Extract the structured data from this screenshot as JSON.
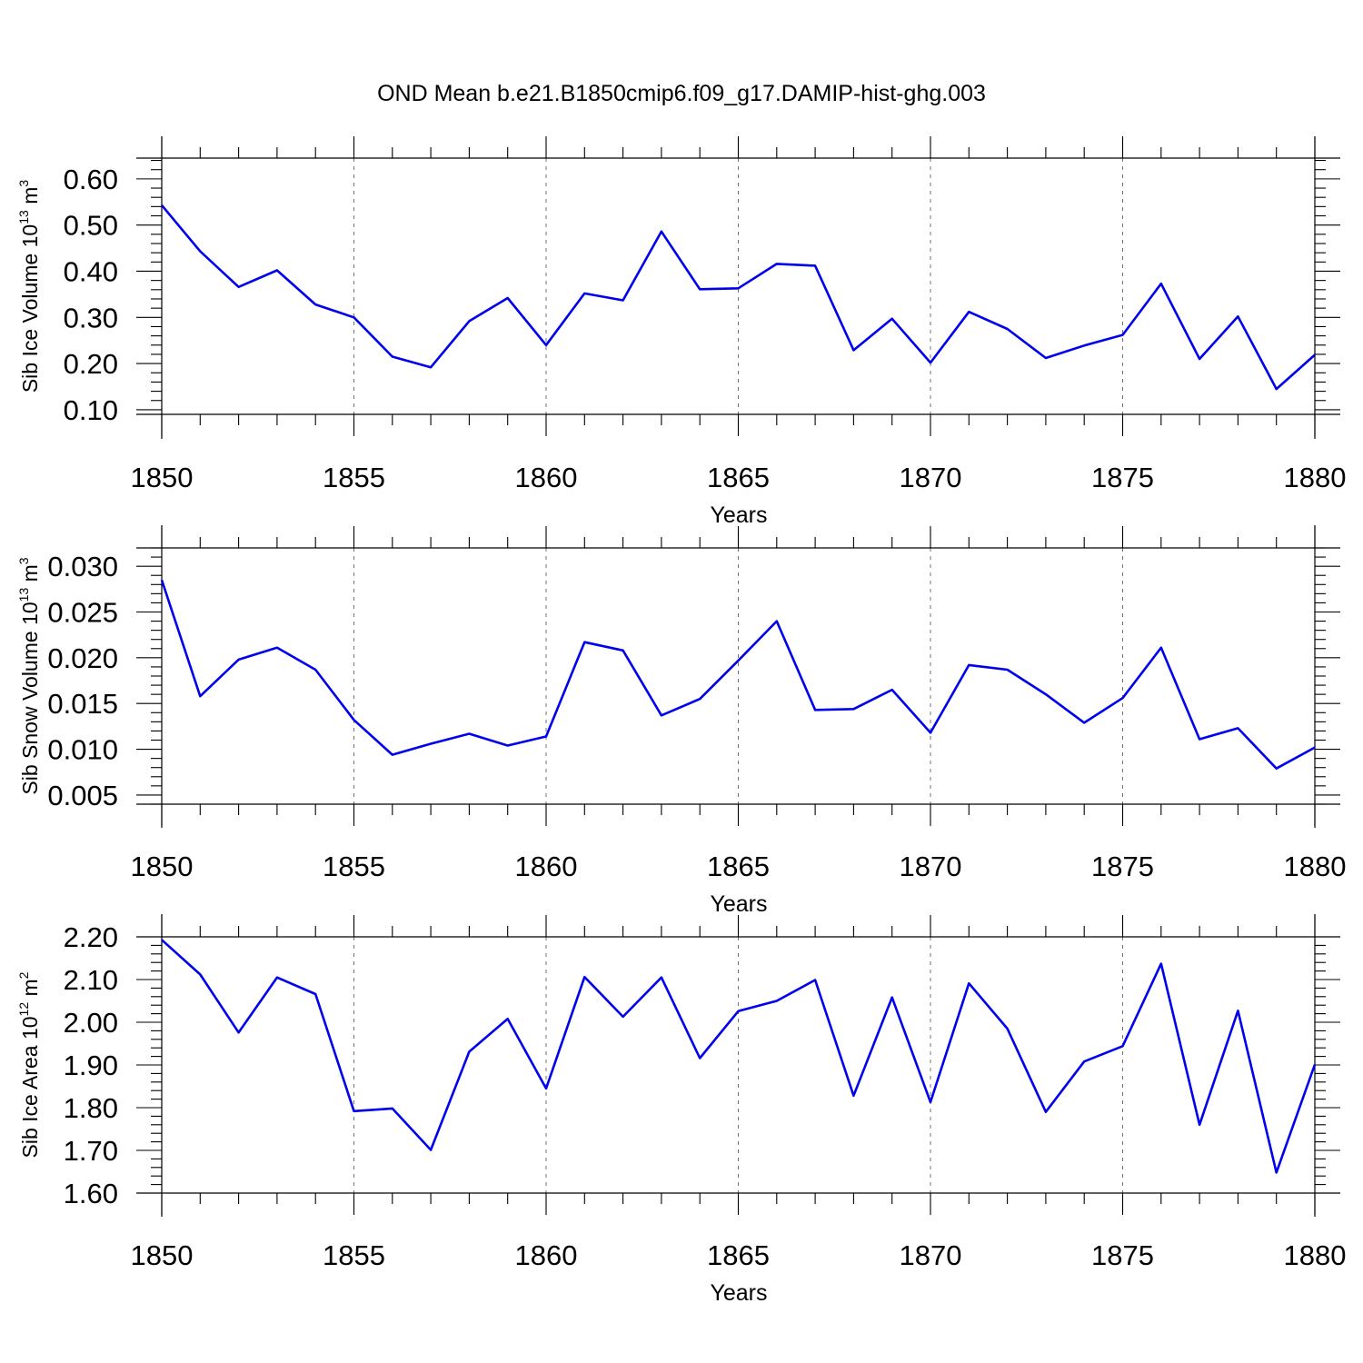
{
  "title": "OND Mean b.e21.B1850cmip6.f09_g17.DAMIP-hist-ghg.003",
  "line_color": "#0000ee",
  "chart_data": [
    {
      "type": "line",
      "xlabel": "Years",
      "ylabel": {
        "text": "Sib Ice Volume 10",
        "sup": "13",
        "unit": " m",
        "unit_sup": "3"
      },
      "xlim": [
        1850,
        1880
      ],
      "ylim": [
        0.09,
        0.645
      ],
      "xticks": [
        "1850",
        "1855",
        "1860",
        "1865",
        "1870",
        "1875",
        "1880"
      ],
      "yticks": [
        "0.10",
        "0.20",
        "0.30",
        "0.40",
        "0.50",
        "0.60"
      ],
      "grid": "vertical dashed",
      "x": [
        1850,
        1851,
        1852,
        1853,
        1854,
        1855,
        1856,
        1857,
        1858,
        1859,
        1860,
        1861,
        1862,
        1863,
        1864,
        1865,
        1866,
        1867,
        1868,
        1869,
        1870,
        1871,
        1872,
        1873,
        1874,
        1875,
        1876,
        1877,
        1878,
        1879,
        1880
      ],
      "values": [
        0.543,
        0.443,
        0.366,
        0.402,
        0.328,
        0.3,
        0.215,
        0.192,
        0.292,
        0.342,
        0.24,
        0.352,
        0.337,
        0.486,
        0.361,
        0.363,
        0.416,
        0.412,
        0.229,
        0.297,
        0.202,
        0.312,
        0.275,
        0.212,
        0.239,
        0.262,
        0.373,
        0.21,
        0.302,
        0.145,
        0.219
      ]
    },
    {
      "type": "line",
      "xlabel": "Years",
      "ylabel": {
        "text": "Sib Snow Volume 10",
        "sup": "13",
        "unit": " m",
        "unit_sup": "3"
      },
      "xlim": [
        1850,
        1880
      ],
      "ylim": [
        0.004,
        0.032
      ],
      "xticks": [
        "1850",
        "1855",
        "1860",
        "1865",
        "1870",
        "1875",
        "1880"
      ],
      "yticks": [
        "0.005",
        "0.010",
        "0.015",
        "0.020",
        "0.025",
        "0.030"
      ],
      "grid": "vertical dashed",
      "x": [
        1850,
        1851,
        1852,
        1853,
        1854,
        1855,
        1856,
        1857,
        1858,
        1859,
        1860,
        1861,
        1862,
        1863,
        1864,
        1865,
        1866,
        1867,
        1868,
        1869,
        1870,
        1871,
        1872,
        1873,
        1874,
        1875,
        1876,
        1877,
        1878,
        1879,
        1880
      ],
      "values": [
        0.0285,
        0.0158,
        0.0198,
        0.0211,
        0.0187,
        0.0132,
        0.0094,
        0.0106,
        0.0117,
        0.0104,
        0.0114,
        0.0217,
        0.0208,
        0.0137,
        0.0155,
        0.0197,
        0.024,
        0.0143,
        0.0144,
        0.0165,
        0.0118,
        0.0192,
        0.0187,
        0.016,
        0.0129,
        0.0156,
        0.0211,
        0.0111,
        0.0123,
        0.0079,
        0.0102
      ]
    },
    {
      "type": "line",
      "xlabel": "Years",
      "ylabel": {
        "text": "Sib Ice Area 10",
        "sup": "12",
        "unit": " m",
        "unit_sup": "2"
      },
      "xlim": [
        1850,
        1880
      ],
      "ylim": [
        1.6,
        2.2
      ],
      "xticks": [
        "1850",
        "1855",
        "1860",
        "1865",
        "1870",
        "1875",
        "1880"
      ],
      "yticks": [
        "1.60",
        "1.70",
        "1.80",
        "1.90",
        "2.00",
        "2.10",
        "2.20"
      ],
      "grid": "vertical dashed",
      "x": [
        1850,
        1851,
        1852,
        1853,
        1854,
        1855,
        1856,
        1857,
        1858,
        1859,
        1860,
        1861,
        1862,
        1863,
        1864,
        1865,
        1866,
        1867,
        1868,
        1869,
        1870,
        1871,
        1872,
        1873,
        1874,
        1875,
        1876,
        1877,
        1878,
        1879,
        1880
      ],
      "values": [
        2.193,
        2.112,
        1.976,
        2.105,
        2.066,
        1.792,
        1.798,
        1.701,
        1.931,
        2.008,
        1.845,
        2.106,
        2.013,
        2.105,
        1.916,
        2.026,
        2.05,
        2.099,
        1.828,
        2.058,
        1.813,
        2.091,
        1.985,
        1.79,
        1.908,
        1.944,
        2.137,
        1.76,
        2.027,
        1.648,
        1.901
      ]
    }
  ]
}
